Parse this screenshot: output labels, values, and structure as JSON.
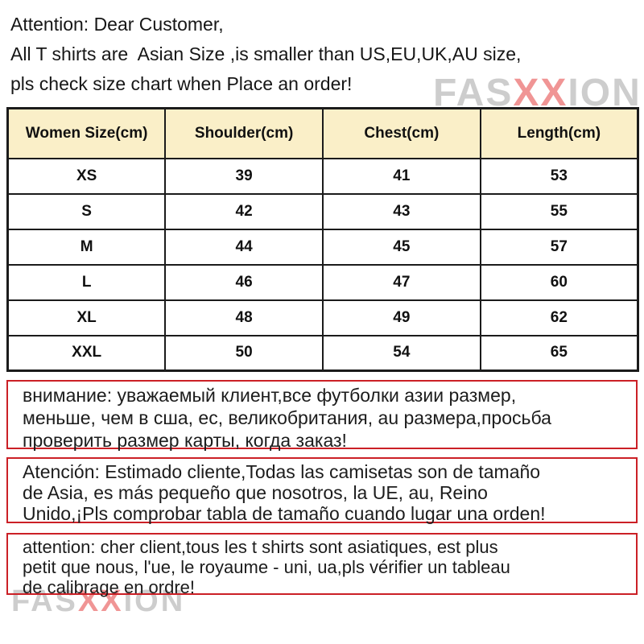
{
  "header_note": {
    "text": "Attention: Dear Customer,\nAll T shirts are  Asian Size ,is smaller than US,EU,UK,AU size,\npls check size chart when Place an order!"
  },
  "watermark": {
    "prefix": "FAS",
    "middle": "XX",
    "suffix": "ION",
    "gray_color": "#d9d9d9",
    "red_color": "#f28c8c"
  },
  "size_table": {
    "header_bg": "#faefc8",
    "border_color": "#1b1b1b",
    "columns": [
      "Women Size(cm)",
      "Shoulder(cm)",
      "Chest(cm)",
      "Length(cm)"
    ],
    "rows": [
      [
        "XS",
        "39",
        "41",
        "53"
      ],
      [
        "S",
        "42",
        "43",
        "55"
      ],
      [
        "M",
        "44",
        "45",
        "57"
      ],
      [
        "L",
        "46",
        "47",
        "60"
      ],
      [
        "XL",
        "48",
        "49",
        "62"
      ],
      [
        "XXL",
        "50",
        "54",
        "65"
      ]
    ]
  },
  "notice_boxes": {
    "border_color": "#cb2026",
    "russian": "внимание: уважаемый клиент,все футболки азии размер,\nменьше, чем в сша, ес, великобритания, au размера,просьба\nпроверить размер карты, когда заказ!",
    "spanish": "Atención: Estimado cliente,Todas las camisetas son de tamaño\nde Asia, es más pequeño que nosotros, la UE, au, Reino\nUnido,¡Pls comprobar tabla de tamaño cuando lugar una orden!",
    "french": "attention: cher client,tous les t shirts sont asiatiques, est plus\npetit que nous, l'ue, le royaume - uni, ua,pls vérifier un tableau\nde calibrage en ordre!"
  }
}
